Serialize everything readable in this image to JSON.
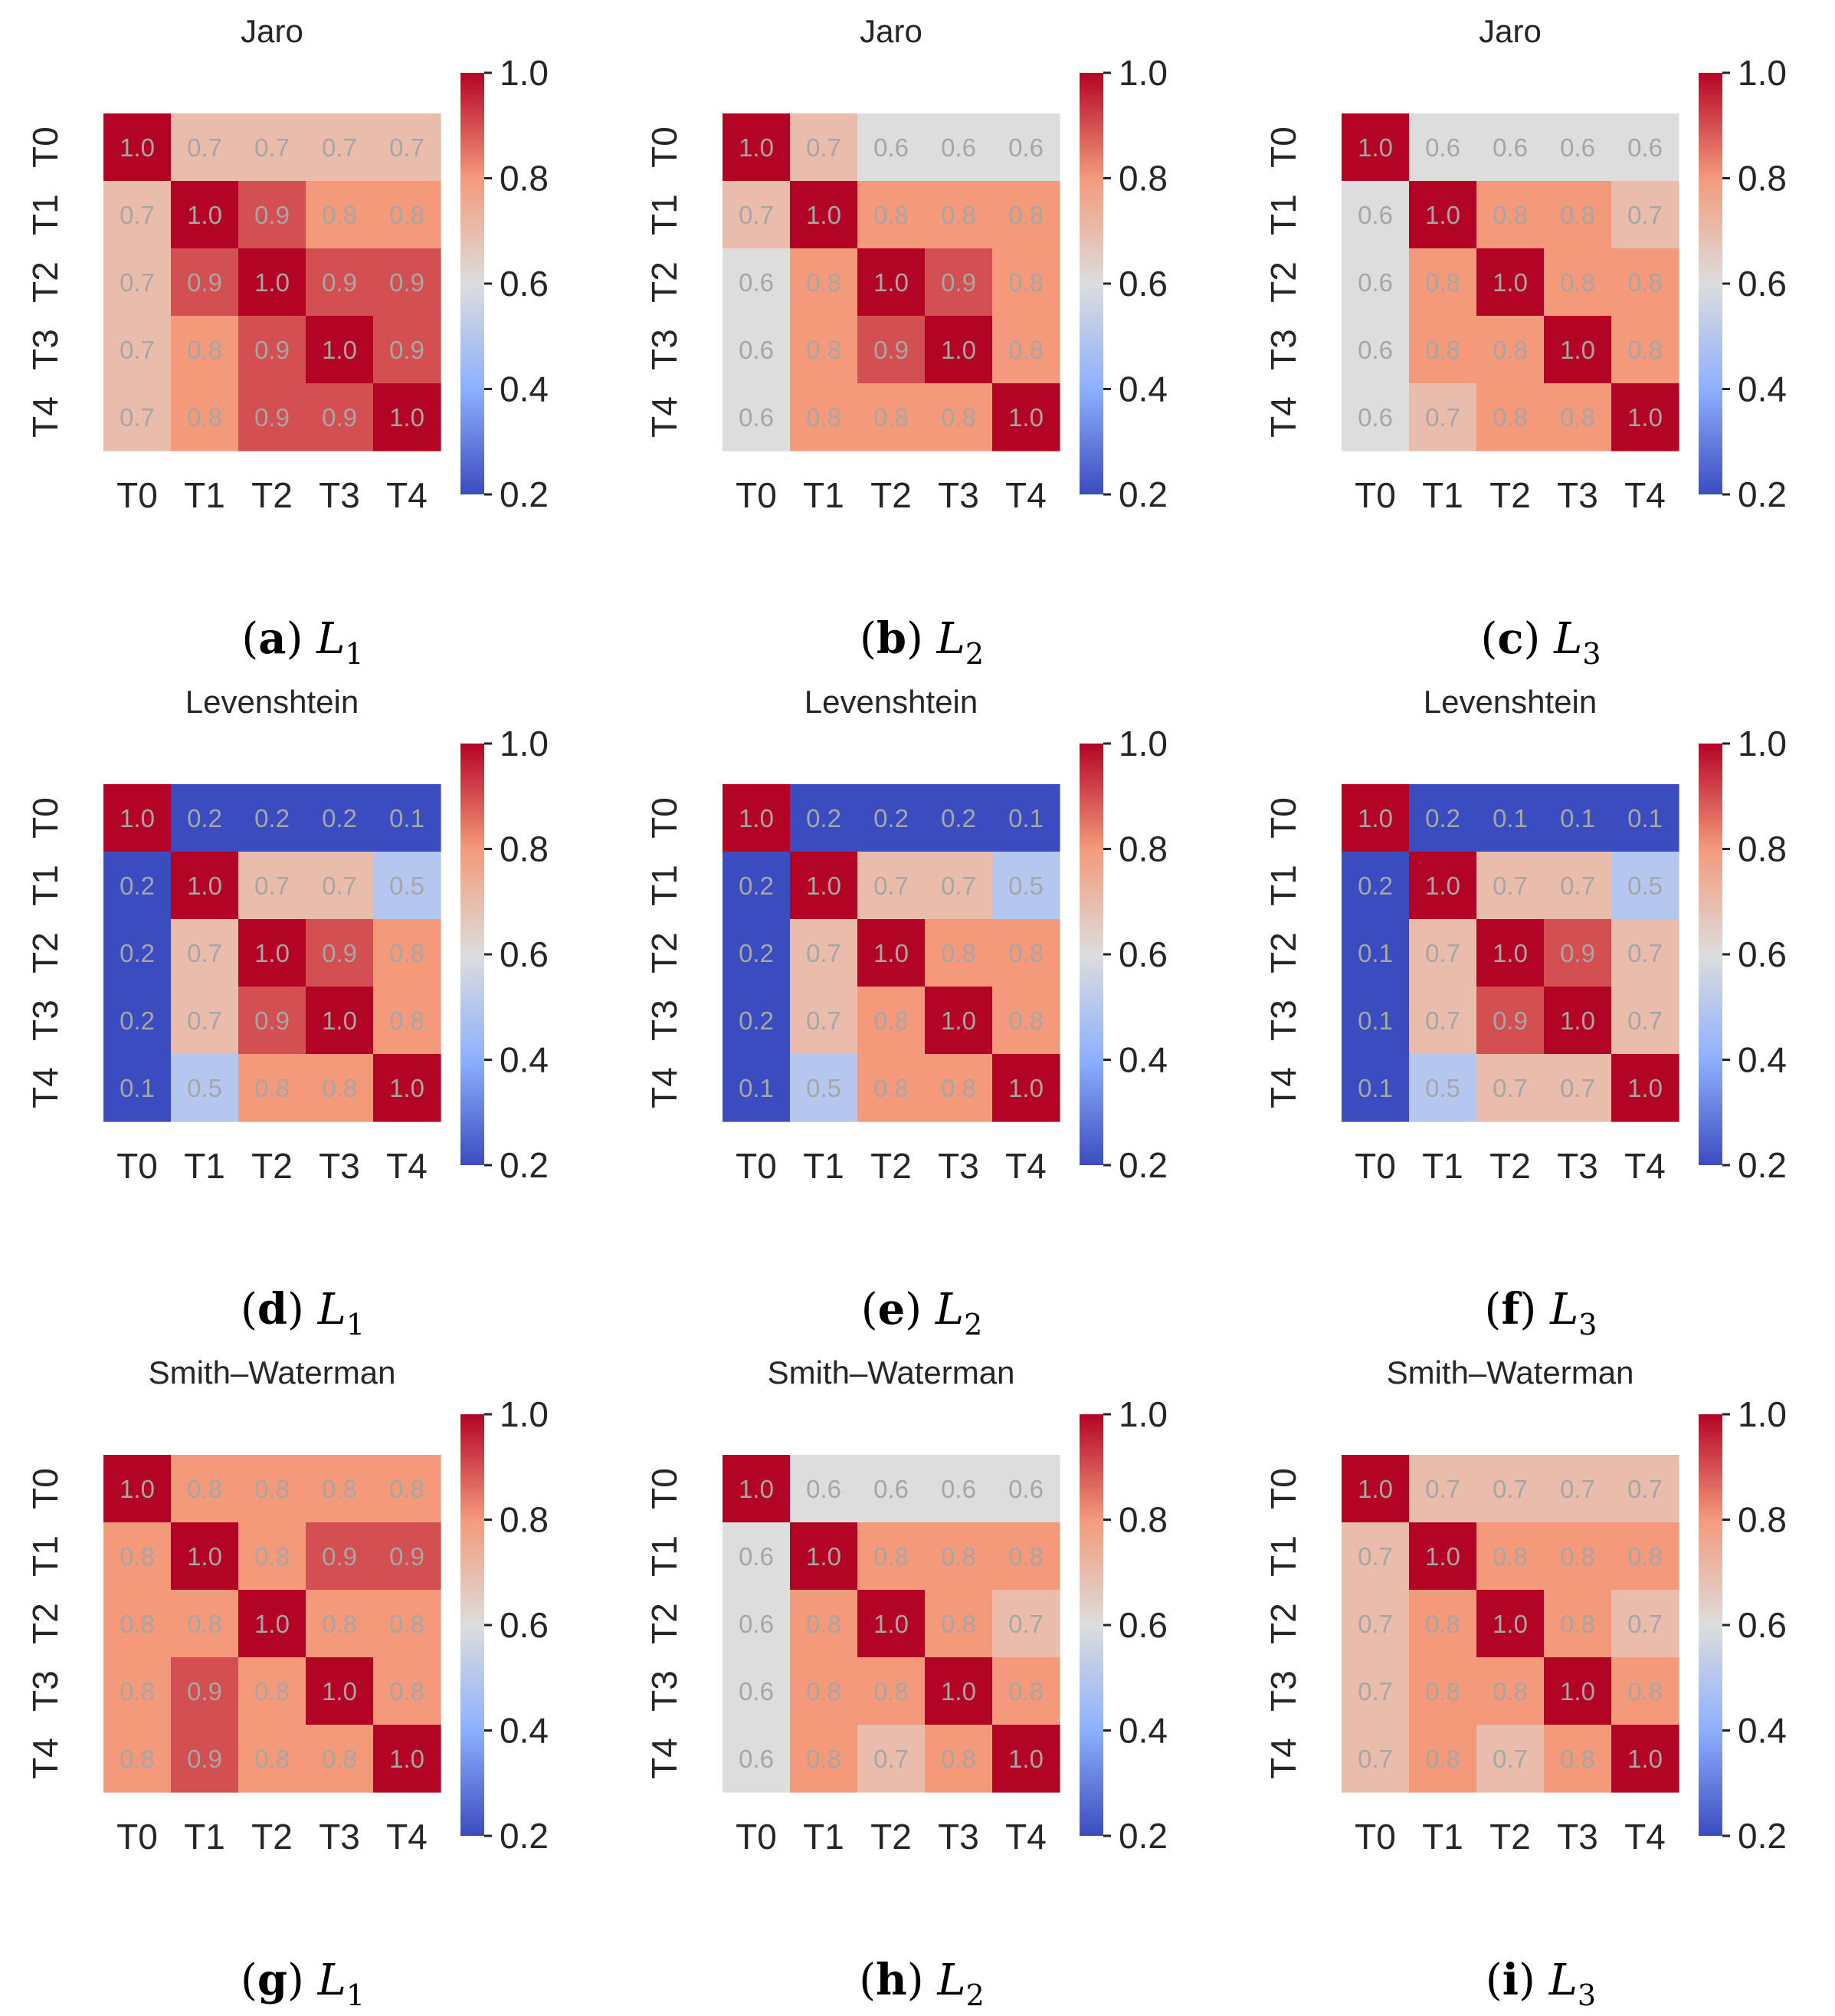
{
  "colors": {
    "cmap": [
      [
        0,
        "#3b4cc0"
      ],
      [
        0.25,
        "#8db0fe"
      ],
      [
        0.5,
        "#dddddd"
      ],
      [
        0.75,
        "#f49a7b"
      ],
      [
        1,
        "#b40426"
      ]
    ],
    "cell_text": "#a6a6a6",
    "text": "#262626"
  },
  "colorbar": {
    "min": 0.2,
    "max": 1.0,
    "ticks": [
      "1.0",
      "0.8",
      "0.6",
      "0.4",
      "0.2"
    ]
  },
  "chart_data": [
    {
      "type": "heatmap",
      "id": "a",
      "title": "Jaro",
      "caption_letter": "a",
      "caption_var": "L",
      "caption_sub": "1",
      "labels": [
        "T0",
        "T1",
        "T2",
        "T3",
        "T4"
      ],
      "values": [
        [
          1.0,
          0.7,
          0.7,
          0.7,
          0.7
        ],
        [
          0.7,
          1.0,
          0.9,
          0.8,
          0.8
        ],
        [
          0.7,
          0.9,
          1.0,
          0.9,
          0.9
        ],
        [
          0.7,
          0.8,
          0.9,
          1.0,
          0.9
        ],
        [
          0.7,
          0.8,
          0.9,
          0.9,
          1.0
        ]
      ]
    },
    {
      "type": "heatmap",
      "id": "b",
      "title": "Jaro",
      "caption_letter": "b",
      "caption_var": "L",
      "caption_sub": "2",
      "labels": [
        "T0",
        "T1",
        "T2",
        "T3",
        "T4"
      ],
      "values": [
        [
          1.0,
          0.7,
          0.6,
          0.6,
          0.6
        ],
        [
          0.7,
          1.0,
          0.8,
          0.8,
          0.8
        ],
        [
          0.6,
          0.8,
          1.0,
          0.9,
          0.8
        ],
        [
          0.6,
          0.8,
          0.9,
          1.0,
          0.8
        ],
        [
          0.6,
          0.8,
          0.8,
          0.8,
          1.0
        ]
      ]
    },
    {
      "type": "heatmap",
      "id": "c",
      "title": "Jaro",
      "caption_letter": "c",
      "caption_var": "L",
      "caption_sub": "3",
      "labels": [
        "T0",
        "T1",
        "T2",
        "T3",
        "T4"
      ],
      "values": [
        [
          1.0,
          0.6,
          0.6,
          0.6,
          0.6
        ],
        [
          0.6,
          1.0,
          0.8,
          0.8,
          0.7
        ],
        [
          0.6,
          0.8,
          1.0,
          0.8,
          0.8
        ],
        [
          0.6,
          0.8,
          0.8,
          1.0,
          0.8
        ],
        [
          0.6,
          0.7,
          0.8,
          0.8,
          1.0
        ]
      ]
    },
    {
      "type": "heatmap",
      "id": "d",
      "title": "Levenshtein",
      "caption_letter": "d",
      "caption_var": "L",
      "caption_sub": "1",
      "labels": [
        "T0",
        "T1",
        "T2",
        "T3",
        "T4"
      ],
      "values": [
        [
          1.0,
          0.2,
          0.2,
          0.2,
          0.1
        ],
        [
          0.2,
          1.0,
          0.7,
          0.7,
          0.5
        ],
        [
          0.2,
          0.7,
          1.0,
          0.9,
          0.8
        ],
        [
          0.2,
          0.7,
          0.9,
          1.0,
          0.8
        ],
        [
          0.1,
          0.5,
          0.8,
          0.8,
          1.0
        ]
      ]
    },
    {
      "type": "heatmap",
      "id": "e",
      "title": "Levenshtein",
      "caption_letter": "e",
      "caption_var": "L",
      "caption_sub": "2",
      "labels": [
        "T0",
        "T1",
        "T2",
        "T3",
        "T4"
      ],
      "values": [
        [
          1.0,
          0.2,
          0.2,
          0.2,
          0.1
        ],
        [
          0.2,
          1.0,
          0.7,
          0.7,
          0.5
        ],
        [
          0.2,
          0.7,
          1.0,
          0.8,
          0.8
        ],
        [
          0.2,
          0.7,
          0.8,
          1.0,
          0.8
        ],
        [
          0.1,
          0.5,
          0.8,
          0.8,
          1.0
        ]
      ]
    },
    {
      "type": "heatmap",
      "id": "f",
      "title": "Levenshtein",
      "caption_letter": "f",
      "caption_var": "L",
      "caption_sub": "3",
      "labels": [
        "T0",
        "T1",
        "T2",
        "T3",
        "T4"
      ],
      "values": [
        [
          1.0,
          0.2,
          0.1,
          0.1,
          0.1
        ],
        [
          0.2,
          1.0,
          0.7,
          0.7,
          0.5
        ],
        [
          0.1,
          0.7,
          1.0,
          0.9,
          0.7
        ],
        [
          0.1,
          0.7,
          0.9,
          1.0,
          0.7
        ],
        [
          0.1,
          0.5,
          0.7,
          0.7,
          1.0
        ]
      ]
    },
    {
      "type": "heatmap",
      "id": "g",
      "title": "Smith–Waterman",
      "caption_letter": "g",
      "caption_var": "L",
      "caption_sub": "1",
      "labels": [
        "T0",
        "T1",
        "T2",
        "T3",
        "T4"
      ],
      "values": [
        [
          1.0,
          0.8,
          0.8,
          0.8,
          0.8
        ],
        [
          0.8,
          1.0,
          0.8,
          0.9,
          0.9
        ],
        [
          0.8,
          0.8,
          1.0,
          0.8,
          0.8
        ],
        [
          0.8,
          0.9,
          0.8,
          1.0,
          0.8
        ],
        [
          0.8,
          0.9,
          0.8,
          0.8,
          1.0
        ]
      ]
    },
    {
      "type": "heatmap",
      "id": "h",
      "title": "Smith–Waterman",
      "caption_letter": "h",
      "caption_var": "L",
      "caption_sub": "2",
      "labels": [
        "T0",
        "T1",
        "T2",
        "T3",
        "T4"
      ],
      "values": [
        [
          1.0,
          0.6,
          0.6,
          0.6,
          0.6
        ],
        [
          0.6,
          1.0,
          0.8,
          0.8,
          0.8
        ],
        [
          0.6,
          0.8,
          1.0,
          0.8,
          0.7
        ],
        [
          0.6,
          0.8,
          0.8,
          1.0,
          0.8
        ],
        [
          0.6,
          0.8,
          0.7,
          0.8,
          1.0
        ]
      ]
    },
    {
      "type": "heatmap",
      "id": "i",
      "title": "Smith–Waterman",
      "caption_letter": "i",
      "caption_var": "L",
      "caption_sub": "3",
      "labels": [
        "T0",
        "T1",
        "T2",
        "T3",
        "T4"
      ],
      "values": [
        [
          1.0,
          0.7,
          0.7,
          0.7,
          0.7
        ],
        [
          0.7,
          1.0,
          0.8,
          0.8,
          0.8
        ],
        [
          0.7,
          0.8,
          1.0,
          0.8,
          0.7
        ],
        [
          0.7,
          0.8,
          0.8,
          1.0,
          0.8
        ],
        [
          0.7,
          0.8,
          0.7,
          0.8,
          1.0
        ]
      ]
    }
  ]
}
